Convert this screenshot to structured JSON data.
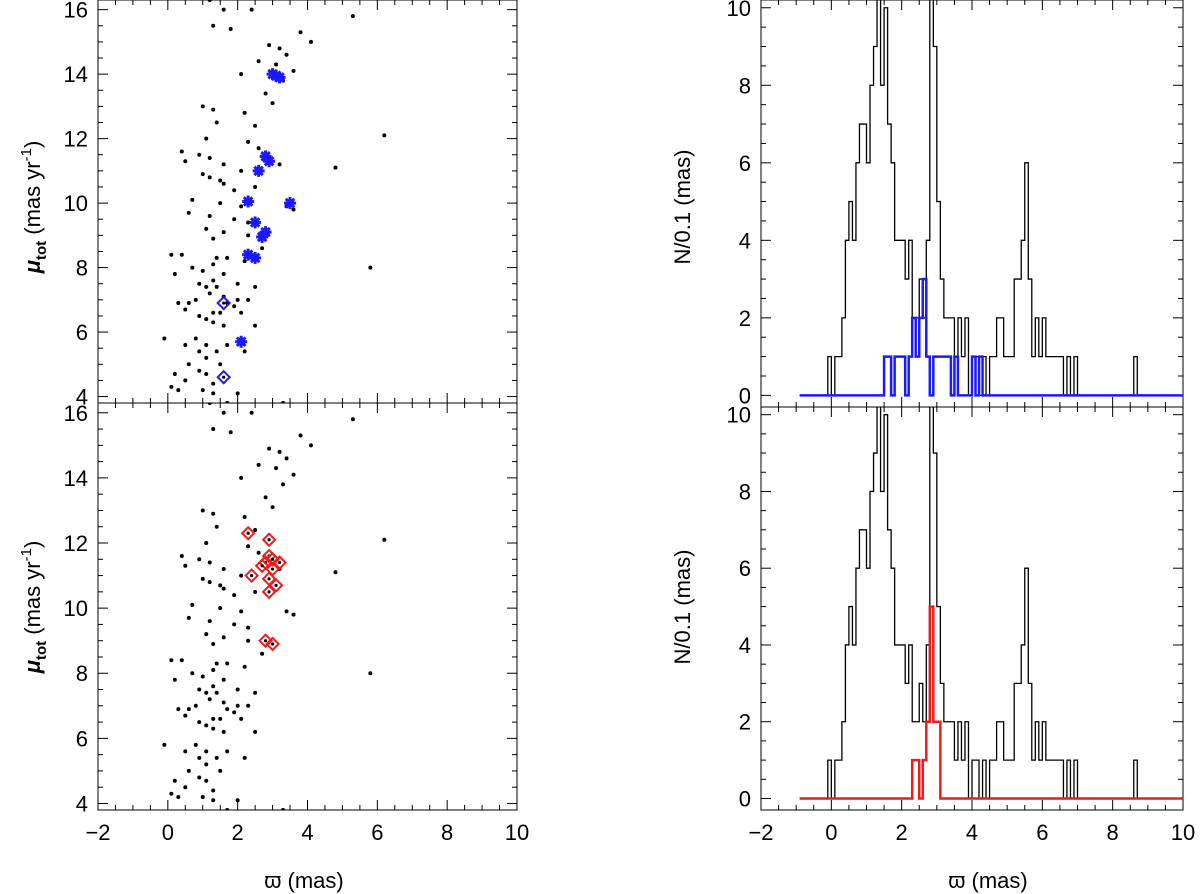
{
  "chart_data": {
    "type": "scatter+histogram",
    "shared": {
      "xlabel": "ϖ (mas)",
      "xlim": [
        -2,
        10
      ],
      "xticks": [
        "−2",
        "0",
        "2",
        "4",
        "6",
        "8",
        "10"
      ],
      "ylabel_left_main": "μ",
      "ylabel_left_sub": "tot",
      "ylabel_left_unit": " (mas yr",
      "ylabel_left_exp": "-1",
      "ylabel_left_close": ")",
      "ylabel_right": "N/0.1  (mas)"
    },
    "scatter": {
      "ylim": [
        3.8,
        16.3
      ],
      "yticks": [
        4,
        6,
        8,
        10,
        12,
        14,
        16
      ],
      "field_points": [
        [
          1.2,
          16.3
        ],
        [
          1.6,
          16.0
        ],
        [
          2.4,
          16.0
        ],
        [
          5.3,
          15.8
        ],
        [
          1.3,
          15.5
        ],
        [
          1.8,
          15.4
        ],
        [
          3.8,
          15.3
        ],
        [
          4.1,
          15.0
        ],
        [
          2.9,
          14.9
        ],
        [
          3.2,
          14.8
        ],
        [
          3.4,
          14.6
        ],
        [
          2.6,
          14.4
        ],
        [
          3.1,
          14.3
        ],
        [
          3.6,
          14.1
        ],
        [
          2.1,
          14.0
        ],
        [
          3.3,
          13.8
        ],
        [
          2.8,
          13.4
        ],
        [
          3.0,
          13.1
        ],
        [
          1.0,
          13.0
        ],
        [
          1.3,
          12.9
        ],
        [
          2.2,
          12.8
        ],
        [
          1.4,
          12.5
        ],
        [
          2.5,
          12.4
        ],
        [
          6.2,
          12.1
        ],
        [
          1.1,
          12.0
        ],
        [
          2.3,
          11.9
        ],
        [
          2.6,
          11.7
        ],
        [
          0.4,
          11.6
        ],
        [
          0.9,
          11.5
        ],
        [
          1.2,
          11.4
        ],
        [
          1.6,
          11.2
        ],
        [
          0.5,
          11.3
        ],
        [
          3.2,
          11.2
        ],
        [
          4.8,
          11.1
        ],
        [
          2.1,
          11.0
        ],
        [
          1.0,
          10.9
        ],
        [
          1.2,
          10.8
        ],
        [
          1.5,
          10.7
        ],
        [
          1.6,
          10.6
        ],
        [
          2.5,
          10.5
        ],
        [
          1.9,
          10.4
        ],
        [
          0.7,
          10.1
        ],
        [
          1.5,
          10.0
        ],
        [
          2.1,
          9.9
        ],
        [
          3.4,
          9.9
        ],
        [
          3.6,
          9.8
        ],
        [
          0.6,
          9.7
        ],
        [
          1.2,
          9.6
        ],
        [
          1.9,
          9.5
        ],
        [
          2.3,
          9.4
        ],
        [
          1.1,
          9.2
        ],
        [
          1.6,
          9.1
        ],
        [
          2.3,
          9.0
        ],
        [
          1.3,
          8.9
        ],
        [
          2.7,
          8.6
        ],
        [
          0.1,
          8.4
        ],
        [
          0.4,
          8.4
        ],
        [
          1.4,
          8.3
        ],
        [
          1.7,
          8.3
        ],
        [
          2.2,
          8.2
        ],
        [
          1.3,
          8.1
        ],
        [
          0.7,
          8.0
        ],
        [
          1.0,
          7.9
        ],
        [
          5.8,
          8.0
        ],
        [
          0.2,
          7.8
        ],
        [
          1.6,
          7.8
        ],
        [
          1.3,
          7.6
        ],
        [
          0.9,
          7.5
        ],
        [
          2.0,
          7.5
        ],
        [
          1.1,
          7.4
        ],
        [
          1.4,
          7.4
        ],
        [
          2.5,
          7.4
        ],
        [
          1.2,
          7.2
        ],
        [
          1.6,
          7.1
        ],
        [
          0.8,
          7.0
        ],
        [
          2.0,
          7.0
        ],
        [
          2.3,
          7.0
        ],
        [
          0.3,
          6.9
        ],
        [
          0.6,
          6.9
        ],
        [
          1.7,
          6.9
        ],
        [
          1.9,
          6.8
        ],
        [
          0.5,
          6.7
        ],
        [
          1.3,
          6.6
        ],
        [
          1.5,
          6.6
        ],
        [
          2.1,
          6.6
        ],
        [
          0.9,
          6.5
        ],
        [
          1.1,
          6.4
        ],
        [
          1.3,
          6.3
        ],
        [
          1.6,
          6.2
        ],
        [
          2.5,
          6.2
        ],
        [
          -0.1,
          5.8
        ],
        [
          0.8,
          5.8
        ],
        [
          0.5,
          5.6
        ],
        [
          1.1,
          5.6
        ],
        [
          1.7,
          5.6
        ],
        [
          0.9,
          5.4
        ],
        [
          1.4,
          5.4
        ],
        [
          2.2,
          5.4
        ],
        [
          1.1,
          5.2
        ],
        [
          1.5,
          5.0
        ],
        [
          0.6,
          5.0
        ],
        [
          0.9,
          4.8
        ],
        [
          0.2,
          4.7
        ],
        [
          1.1,
          4.7
        ],
        [
          0.5,
          4.5
        ],
        [
          1.3,
          4.4
        ],
        [
          0.1,
          4.3
        ],
        [
          0.3,
          4.2
        ],
        [
          1.0,
          4.2
        ],
        [
          1.3,
          4.1
        ],
        [
          2.0,
          4.1
        ],
        [
          1.7,
          3.8
        ],
        [
          3.3,
          3.8
        ]
      ],
      "top_blue_stars": [
        [
          3.0,
          14.0
        ],
        [
          3.2,
          13.9
        ],
        [
          3.1,
          13.95
        ],
        [
          2.8,
          11.45
        ],
        [
          2.9,
          11.3
        ],
        [
          2.6,
          11.0
        ],
        [
          2.3,
          10.05
        ],
        [
          3.5,
          10.0
        ],
        [
          2.5,
          9.4
        ],
        [
          2.8,
          9.1
        ],
        [
          2.7,
          8.95
        ],
        [
          2.3,
          8.4
        ],
        [
          2.5,
          8.3
        ],
        [
          2.1,
          5.7
        ]
      ],
      "top_blue_diamonds": [
        [
          1.6,
          6.9
        ],
        [
          1.6,
          4.6
        ]
      ],
      "bottom_red_diamonds": [
        [
          2.3,
          12.3
        ],
        [
          2.9,
          12.1
        ],
        [
          2.9,
          11.6
        ],
        [
          2.8,
          11.4
        ],
        [
          3.0,
          11.5
        ],
        [
          3.2,
          11.4
        ],
        [
          2.7,
          11.3
        ],
        [
          3.0,
          11.2
        ],
        [
          2.9,
          10.9
        ],
        [
          2.4,
          11.0
        ],
        [
          3.1,
          10.7
        ],
        [
          2.9,
          10.5
        ],
        [
          2.8,
          9.0
        ],
        [
          3.0,
          8.9
        ]
      ]
    },
    "histogram": {
      "ylim": [
        -0.3,
        10.2
      ],
      "yticks": [
        0,
        2,
        4,
        6,
        8,
        10
      ],
      "bin_width": 0.1,
      "black_bins": [
        [
          -0.1,
          1
        ],
        [
          0.0,
          0
        ],
        [
          0.1,
          1
        ],
        [
          0.2,
          1
        ],
        [
          0.3,
          2
        ],
        [
          0.4,
          4
        ],
        [
          0.5,
          5
        ],
        [
          0.6,
          4
        ],
        [
          0.7,
          6
        ],
        [
          0.8,
          7
        ],
        [
          0.9,
          7
        ],
        [
          1.0,
          6
        ],
        [
          1.1,
          8
        ],
        [
          1.2,
          9
        ],
        [
          1.3,
          12
        ],
        [
          1.4,
          8
        ],
        [
          1.5,
          10
        ],
        [
          1.6,
          7
        ],
        [
          1.7,
          6
        ],
        [
          1.8,
          4
        ],
        [
          1.9,
          4
        ],
        [
          2.0,
          4
        ],
        [
          2.1,
          3
        ],
        [
          2.2,
          4
        ],
        [
          2.3,
          2
        ],
        [
          2.4,
          2
        ],
        [
          2.5,
          3
        ],
        [
          2.6,
          2
        ],
        [
          2.7,
          4
        ],
        [
          2.8,
          12
        ],
        [
          2.9,
          9
        ],
        [
          3.0,
          5
        ],
        [
          3.1,
          3
        ],
        [
          3.2,
          2
        ],
        [
          3.3,
          2
        ],
        [
          3.4,
          2
        ],
        [
          3.5,
          1
        ],
        [
          3.6,
          2
        ],
        [
          3.7,
          1
        ],
        [
          3.8,
          2
        ],
        [
          3.9,
          0
        ],
        [
          4.0,
          1
        ],
        [
          4.1,
          1
        ],
        [
          4.2,
          0
        ],
        [
          4.3,
          1
        ],
        [
          4.4,
          0
        ],
        [
          4.5,
          1
        ],
        [
          4.6,
          1
        ],
        [
          4.7,
          2
        ],
        [
          4.8,
          2
        ],
        [
          4.9,
          1
        ],
        [
          5.0,
          1
        ],
        [
          5.1,
          1
        ],
        [
          5.2,
          3
        ],
        [
          5.3,
          3
        ],
        [
          5.4,
          4
        ],
        [
          5.5,
          6
        ],
        [
          5.6,
          3
        ],
        [
          5.7,
          1
        ],
        [
          5.8,
          2
        ],
        [
          5.9,
          1
        ],
        [
          6.0,
          2
        ],
        [
          6.1,
          1
        ],
        [
          6.2,
          1
        ],
        [
          6.3,
          1
        ],
        [
          6.4,
          1
        ],
        [
          6.5,
          1
        ],
        [
          6.6,
          0
        ],
        [
          6.7,
          1
        ],
        [
          6.8,
          0
        ],
        [
          6.9,
          1
        ],
        [
          7.0,
          0
        ],
        [
          7.1,
          0
        ],
        [
          7.2,
          0
        ],
        [
          7.3,
          0
        ],
        [
          7.4,
          0
        ],
        [
          7.5,
          0
        ],
        [
          7.6,
          0
        ],
        [
          7.7,
          0
        ],
        [
          7.8,
          0
        ],
        [
          7.9,
          0
        ],
        [
          8.0,
          0
        ],
        [
          8.1,
          0
        ],
        [
          8.2,
          0
        ],
        [
          8.3,
          0
        ],
        [
          8.4,
          0
        ],
        [
          8.5,
          0
        ],
        [
          8.6,
          1
        ],
        [
          8.7,
          0
        ]
      ],
      "blue_bins": [
        [
          1.5,
          1
        ],
        [
          1.6,
          1
        ],
        [
          1.7,
          0
        ],
        [
          1.8,
          1
        ],
        [
          1.9,
          1
        ],
        [
          2.0,
          1
        ],
        [
          2.1,
          0
        ],
        [
          2.2,
          1
        ],
        [
          2.3,
          2
        ],
        [
          2.4,
          1
        ],
        [
          2.5,
          2
        ],
        [
          2.6,
          3
        ],
        [
          2.7,
          1
        ],
        [
          2.8,
          0
        ],
        [
          2.9,
          1
        ],
        [
          3.0,
          1
        ],
        [
          3.1,
          1
        ],
        [
          3.2,
          1
        ],
        [
          3.3,
          1
        ],
        [
          3.4,
          0
        ],
        [
          3.5,
          1
        ],
        [
          3.6,
          0
        ],
        [
          3.7,
          0
        ],
        [
          3.8,
          0
        ],
        [
          3.9,
          0
        ],
        [
          4.0,
          1
        ],
        [
          4.1,
          0
        ],
        [
          4.2,
          1
        ]
      ],
      "red_bins": [
        [
          2.3,
          1
        ],
        [
          2.4,
          1
        ],
        [
          2.5,
          0
        ],
        [
          2.6,
          1
        ],
        [
          2.7,
          2
        ],
        [
          2.8,
          5
        ],
        [
          2.9,
          2
        ],
        [
          3.0,
          2
        ]
      ],
      "baseline_x": [
        -0.9,
        10
      ]
    }
  },
  "colors": {
    "blue": "#1a1aff",
    "red": "#ee1c1c",
    "black": "#000000"
  }
}
